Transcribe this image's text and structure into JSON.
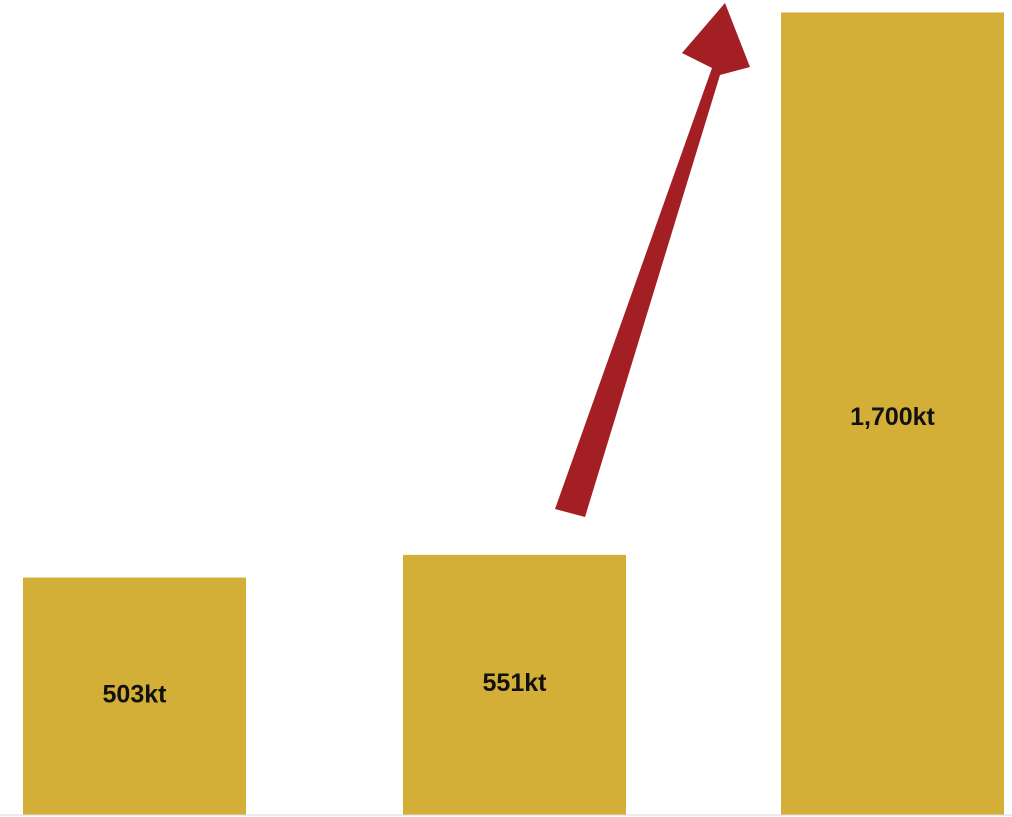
{
  "chart_data": {
    "type": "bar",
    "categories": [
      "",
      "",
      ""
    ],
    "values": [
      503,
      551,
      1700
    ],
    "data_labels": [
      "503kt",
      "551kt",
      "1,700kt"
    ],
    "unit": "kt",
    "ylim": [
      0,
      1720
    ],
    "grid": false,
    "legend": "none",
    "annotation": "upward-arrow",
    "colors": {
      "bar": "#D4AF37",
      "arrow": "#A31F24",
      "baseline": "#D9D9D9",
      "label": "#111111"
    }
  }
}
